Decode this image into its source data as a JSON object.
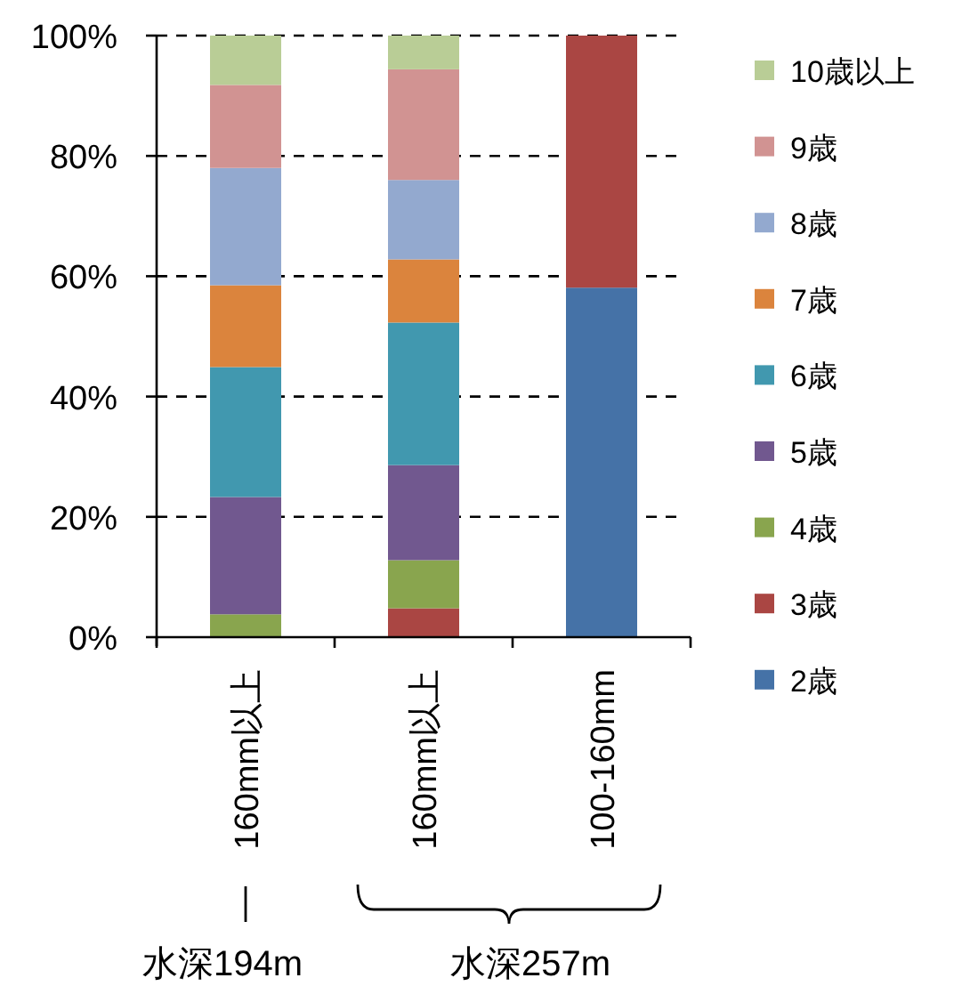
{
  "chart_data": {
    "type": "bar",
    "stacked": true,
    "categories": [
      "160mm以上",
      "160mm以上",
      "100-160mm"
    ],
    "series": [
      {
        "name": "2歳",
        "color": "#4572a7",
        "values": [
          0,
          0,
          58.1
        ]
      },
      {
        "name": "3歳",
        "color": "#aa4643",
        "values": [
          0,
          4.8,
          41.9
        ]
      },
      {
        "name": "4歳",
        "color": "#89a54e",
        "values": [
          3.8,
          8.0,
          0
        ]
      },
      {
        "name": "5歳",
        "color": "#71588f",
        "values": [
          19.5,
          15.8,
          0
        ]
      },
      {
        "name": "6歳",
        "color": "#4198af",
        "values": [
          21.6,
          23.7,
          0
        ]
      },
      {
        "name": "7歳",
        "color": "#db843d",
        "values": [
          13.6,
          10.5,
          0
        ]
      },
      {
        "name": "8歳",
        "color": "#93a9cf",
        "values": [
          19.5,
          13.2,
          0
        ]
      },
      {
        "name": "9歳",
        "color": "#d19392",
        "values": [
          13.8,
          18.4,
          0
        ]
      },
      {
        "name": "10歳以上",
        "color": "#b9cd96",
        "values": [
          8.2,
          5.6,
          0
        ]
      }
    ],
    "ylim": [
      0,
      100
    ],
    "yticks": [
      {
        "value": 0,
        "label": "0%"
      },
      {
        "value": 20,
        "label": "20%"
      },
      {
        "value": 40,
        "label": "40%"
      },
      {
        "value": 60,
        "label": "60%"
      },
      {
        "value": 80,
        "label": "80%"
      },
      {
        "value": 100,
        "label": "100%"
      }
    ],
    "grid": "y",
    "legend": "right",
    "annotations": [
      "水深194m",
      "水深257m"
    ]
  }
}
